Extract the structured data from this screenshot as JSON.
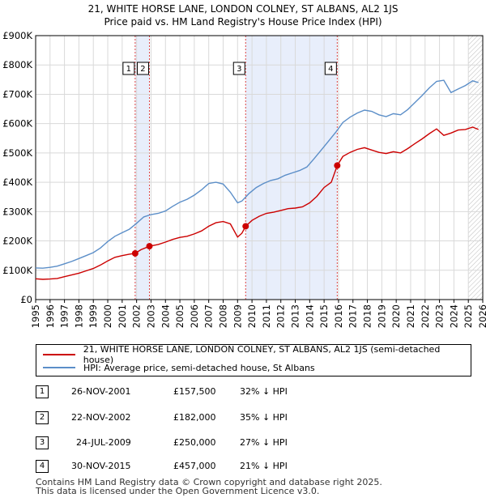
{
  "chart_data": {
    "type": "line",
    "title": "21, WHITE HORSE LANE, LONDON COLNEY, ST ALBANS, AL2 1JS",
    "subtitle": "Price paid vs. HM Land Registry's House Price Index (HPI)",
    "xlabel": "",
    "ylabel": "",
    "xlim": [
      1995,
      2026
    ],
    "ylim": [
      0,
      900000
    ],
    "y_ticks": [
      {
        "value": 0,
        "label": "£0"
      },
      {
        "value": 100000,
        "label": "£100K"
      },
      {
        "value": 200000,
        "label": "£200K"
      },
      {
        "value": 300000,
        "label": "£300K"
      },
      {
        "value": 400000,
        "label": "£400K"
      },
      {
        "value": 500000,
        "label": "£500K"
      },
      {
        "value": 600000,
        "label": "£600K"
      },
      {
        "value": 700000,
        "label": "£700K"
      },
      {
        "value": 800000,
        "label": "£800K"
      },
      {
        "value": 900000,
        "label": "£900K"
      }
    ],
    "x_ticks": [
      "1995",
      "1996",
      "1997",
      "1998",
      "1999",
      "2000",
      "2001",
      "2002",
      "2003",
      "2004",
      "2005",
      "2006",
      "2007",
      "2008",
      "2009",
      "2010",
      "2011",
      "2012",
      "2013",
      "2014",
      "2015",
      "2016",
      "2017",
      "2018",
      "2019",
      "2020",
      "2021",
      "2022",
      "2023",
      "2024",
      "2025",
      "2026"
    ],
    "grid": true,
    "shaded_spans": [
      [
        2001.9,
        2002.9
      ],
      [
        2009.56,
        2015.91
      ]
    ],
    "hatched_after": 2025.0,
    "series": [
      {
        "name": "21, WHITE HORSE LANE, LONDON COLNEY, ST ALBANS, AL2 1JS (semi-detached house)",
        "color": "#cc0000",
        "x": [
          1995.0,
          1995.5,
          1996.0,
          1996.5,
          1997.0,
          1997.5,
          1998.0,
          1998.5,
          1999.0,
          1999.5,
          2000.0,
          2000.5,
          2001.0,
          2001.5,
          2001.9,
          2002.3,
          2002.9,
          2003.5,
          2004.0,
          2004.5,
          2005.0,
          2005.5,
          2006.0,
          2006.5,
          2007.0,
          2007.5,
          2008.0,
          2008.5,
          2009.0,
          2009.3,
          2009.56,
          2010.0,
          2010.5,
          2011.0,
          2011.5,
          2012.0,
          2012.5,
          2013.0,
          2013.5,
          2014.0,
          2014.5,
          2015.0,
          2015.5,
          2015.91,
          2016.3,
          2016.8,
          2017.3,
          2017.8,
          2018.3,
          2018.8,
          2019.3,
          2019.8,
          2020.3,
          2020.8,
          2021.3,
          2021.8,
          2022.3,
          2022.8,
          2023.3,
          2023.8,
          2024.3,
          2024.8,
          2025.3,
          2025.7
        ],
        "values": [
          71000,
          69000,
          70000,
          72000,
          78000,
          84000,
          90000,
          98000,
          106000,
          118000,
          132000,
          144000,
          150000,
          155000,
          157500,
          170000,
          182000,
          188000,
          196000,
          205000,
          212000,
          216000,
          224000,
          234000,
          250000,
          262000,
          266000,
          258000,
          213000,
          226000,
          250000,
          270000,
          284000,
          294000,
          298000,
          304000,
          310000,
          312000,
          316000,
          330000,
          352000,
          382000,
          400000,
          457000,
          488000,
          502000,
          512000,
          518000,
          510000,
          502000,
          498000,
          504000,
          500000,
          515000,
          532000,
          548000,
          566000,
          582000,
          560000,
          568000,
          578000,
          580000,
          588000,
          580000
        ]
      },
      {
        "name": "HPI: Average price, semi-detached house, St Albans",
        "color": "#5b8ec8",
        "x": [
          1995.0,
          1995.5,
          1996.0,
          1996.5,
          1997.0,
          1997.5,
          1998.0,
          1998.5,
          1999.0,
          1999.5,
          2000.0,
          2000.5,
          2001.0,
          2001.5,
          2002.0,
          2002.5,
          2003.0,
          2003.5,
          2004.0,
          2004.5,
          2005.0,
          2005.5,
          2006.0,
          2006.5,
          2007.0,
          2007.5,
          2008.0,
          2008.5,
          2009.0,
          2009.3,
          2009.8,
          2010.3,
          2010.8,
          2011.3,
          2011.8,
          2012.3,
          2012.8,
          2013.3,
          2013.8,
          2014.3,
          2014.8,
          2015.3,
          2015.8,
          2016.3,
          2016.8,
          2017.3,
          2017.8,
          2018.3,
          2018.8,
          2019.3,
          2019.8,
          2020.3,
          2020.8,
          2021.3,
          2021.8,
          2022.3,
          2022.8,
          2023.3,
          2023.8,
          2024.3,
          2024.8,
          2025.3,
          2025.7
        ],
        "values": [
          108000,
          107000,
          110000,
          114000,
          122000,
          130000,
          140000,
          150000,
          160000,
          176000,
          198000,
          216000,
          228000,
          240000,
          260000,
          282000,
          290000,
          294000,
          302000,
          318000,
          332000,
          342000,
          356000,
          374000,
          396000,
          400000,
          394000,
          366000,
          330000,
          336000,
          362000,
          382000,
          396000,
          406000,
          412000,
          424000,
          432000,
          440000,
          452000,
          480000,
          510000,
          540000,
          570000,
          604000,
          622000,
          636000,
          646000,
          642000,
          630000,
          624000,
          634000,
          630000,
          648000,
          672000,
          696000,
          722000,
          744000,
          748000,
          706000,
          718000,
          730000,
          746000,
          740000
        ]
      }
    ],
    "markers": [
      {
        "label": "1",
        "x": 2001.9,
        "y": 157500
      },
      {
        "label": "2",
        "x": 2002.89,
        "y": 182000
      },
      {
        "label": "3",
        "x": 2009.56,
        "y": 250000
      },
      {
        "label": "4",
        "x": 2015.91,
        "y": 457000
      }
    ]
  },
  "legend": {
    "items": [
      {
        "label": "21, WHITE HORSE LANE, LONDON COLNEY, ST ALBANS, AL2 1JS (semi-detached house)",
        "color": "#cc0000"
      },
      {
        "label": "HPI: Average price, semi-detached house, St Albans",
        "color": "#5b8ec8"
      }
    ]
  },
  "sales": [
    {
      "num": "1",
      "date": "26-NOV-2001",
      "price": "£157,500",
      "hpi": "32% ↓ HPI"
    },
    {
      "num": "2",
      "date": "22-NOV-2002",
      "price": "£182,000",
      "hpi": "35% ↓ HPI"
    },
    {
      "num": "3",
      "date": "24-JUL-2009",
      "price": "£250,000",
      "hpi": "27% ↓ HPI"
    },
    {
      "num": "4",
      "date": "30-NOV-2015",
      "price": "£457,000",
      "hpi": "21% ↓ HPI"
    }
  ],
  "footer": {
    "line1": "Contains HM Land Registry data © Crown copyright and database right 2025.",
    "line2": "This data is licensed under the Open Government Licence v3.0."
  }
}
